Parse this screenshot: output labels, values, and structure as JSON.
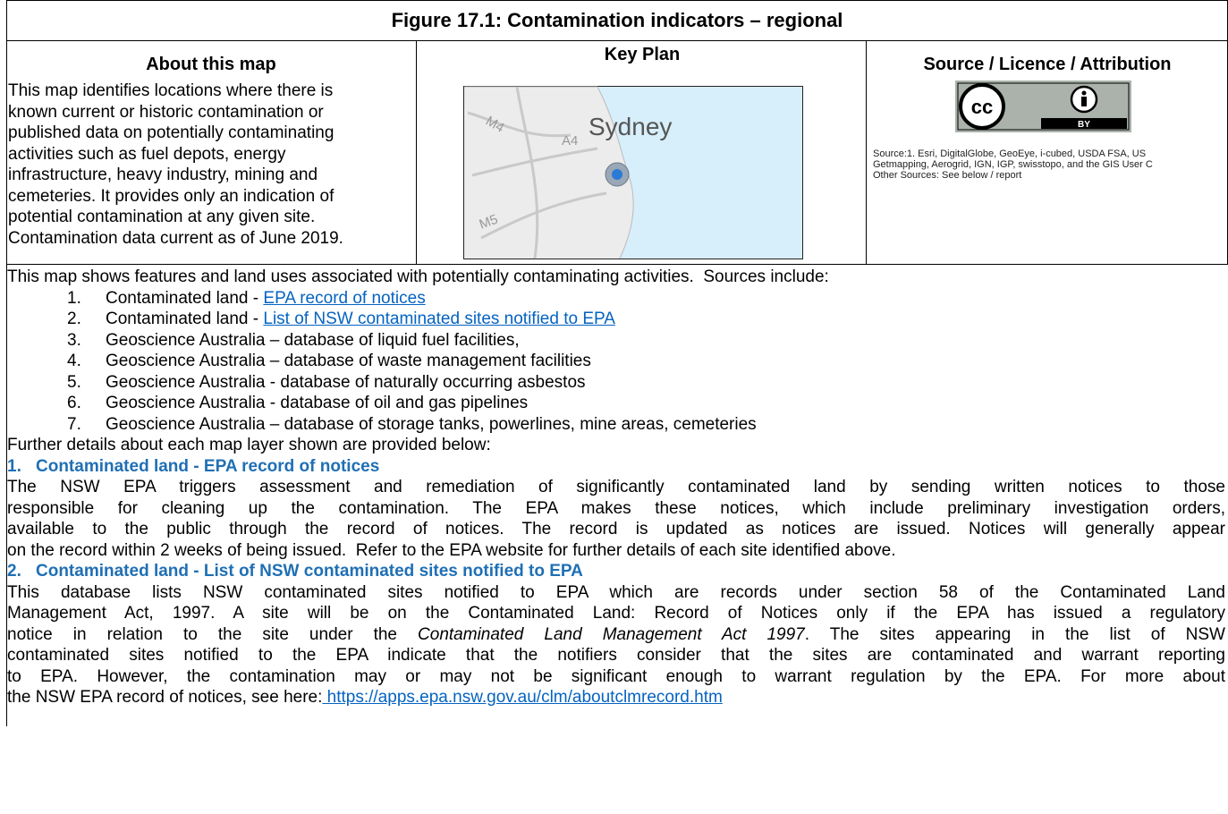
{
  "title": "Figure 17.1: Contamination indicators – regional",
  "about": {
    "heading": "About this map",
    "lines": [
      "This map identifies locations where there is",
      "known current or historic contamination or",
      "published data on potentially contaminating",
      "activities such as fuel depots, energy",
      "infrastructure, heavy industry, mining and",
      "cemeteries. It provides only an indication of",
      "potential contamination at any given site.",
      "Contamination data current as of June 2019."
    ]
  },
  "key_plan": {
    "heading": "Key Plan",
    "city": "Sydney",
    "roads": [
      "M4",
      "A4",
      "M5"
    ]
  },
  "source": {
    "heading": "Source / Licence / Attribution",
    "badge": [
      "cc",
      "BY"
    ],
    "lines": [
      "Source:1. Esri, DigitalGlobe, GeoEye, i-cubed, USDA FSA, US",
      "Getmapping, Aerogrid, IGN, IGP, swisstopo, and the GIS User C",
      "Other Sources: See below / report"
    ]
  },
  "intro": "This map shows features and land uses associated with potentially contaminating activities.  Sources include:",
  "sources": [
    {
      "number": "1.",
      "text": "Contaminated land - ",
      "link": "EPA record of notices"
    },
    {
      "number": "2.",
      "text": "Contaminated land - ",
      "link": "List of NSW contaminated sites notified to EPA"
    },
    {
      "number": "3.",
      "text": "Geoscience Australia – database of liquid fuel facilities,"
    },
    {
      "number": "4.",
      "text": "Geoscience Australia – database of waste management facilities"
    },
    {
      "number": "5.",
      "text": "Geoscience Australia - database of naturally occurring asbestos"
    },
    {
      "number": "6.",
      "text": "Geoscience Australia - database of oil and gas pipelines"
    },
    {
      "number": "7.",
      "text": "Geoscience Australia – database of storage tanks, powerlines, mine areas, cemeteries"
    }
  ],
  "further": "Further details about each map layer shown are provided below:",
  "sections": [
    {
      "number": "1.",
      "heading": "Contaminated land - EPA record of notices",
      "lines": [
        "The NSW EPA triggers assessment and remediation of significantly contaminated land by sending written notices to those",
        "responsible for cleaning up the contamination. The EPA makes these notices, which include preliminary investigation orders,",
        "available to the public through the record of notices. The record is updated as notices are issued. Notices will generally appear",
        "on the record within 2 weeks of being issued.  Refer to the EPA website for further details of each site identified above."
      ]
    },
    {
      "number": "2.",
      "heading": "Contaminated land - List of NSW contaminated sites notified to EPA",
      "lines": [
        "This database lists NSW contaminated sites notified to EPA which are records under section 58 of the Contaminated Land",
        "Management Act, 1997. A site will be on the Contaminated Land: Record of Notices only if the EPA has issued a regulatory",
        {
          "before": "notice in relation to the site under the ",
          "italic": "Contaminated Land Management Act 1997",
          "after": ".  The sites appearing in the list of NSW"
        },
        "contaminated sites notified to the EPA indicate that the notifiers consider that the sites are contaminated and warrant reporting",
        "to EPA. However, the contamination may or may not be significant enough to warrant regulation by the EPA. For more about",
        {
          "before": "the NSW EPA record of notices, see here:",
          "link": " https://apps.epa.nsw.gov.au/clm/aboutclmrecord.htm"
        }
      ]
    }
  ]
}
